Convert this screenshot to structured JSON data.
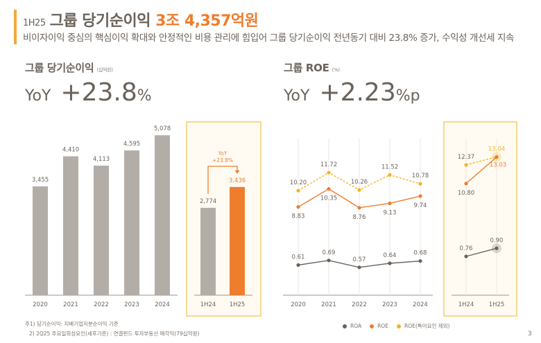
{
  "header": {
    "period": "1H25",
    "title": "그룹 당기순이익",
    "highlight": "3조 4,357억원",
    "subtitle": "비이자이익 중심의 핵심이익 확대와 안정적인 비용 관리에 힘입어 그룹 당기순이익 전년동기 대비 23.8% 증가, 수익성 개선세 지속"
  },
  "left_section": {
    "title": "그룹 당기순이익",
    "unit": "(십억원)",
    "yoy_label": "YoY",
    "yoy_value": "+23.8",
    "yoy_suffix": "%"
  },
  "right_section": {
    "title": "그룹 ROE",
    "unit": "(%)",
    "yoy_label": "YoY",
    "yoy_value": "+2.23",
    "yoy_suffix": "%p"
  },
  "colors": {
    "bar_gray": "#b3ada7",
    "bar_orange": "#ee7d2e",
    "roa": "#6b625b",
    "roe": "#ee7d2e",
    "roe_adj": "#f5b324",
    "panel_border": "#f6d98d"
  },
  "chart_data": [
    {
      "type": "bar",
      "title": "그룹 당기순이익 (십억원) - 연간",
      "categories": [
        "2020",
        "2021",
        "2022",
        "2023",
        "2024"
      ],
      "values": [
        3455,
        4410,
        4113,
        4595,
        5078
      ],
      "labels": [
        "3,455",
        "4,410",
        "4,113",
        "4,595",
        "5,078"
      ],
      "ylim": [
        0,
        5500
      ]
    },
    {
      "type": "bar",
      "title": "그룹 당기순이익 (십억원) - 반기",
      "categories": [
        "1H24",
        "1H25"
      ],
      "values": [
        2774,
        3436
      ],
      "labels": [
        "2,774",
        "3,436"
      ],
      "annotation": {
        "line1": "YoY",
        "line2": "+23.8%"
      },
      "ylim": [
        0,
        5500
      ]
    },
    {
      "type": "line",
      "title": "그룹 ROE (%) - 연간",
      "categories": [
        "2020",
        "2021",
        "2022",
        "2023",
        "2024"
      ],
      "series": [
        {
          "name": "ROE(특이요인 제외)",
          "values": [
            10.2,
            11.72,
            10.26,
            11.52,
            10.78
          ],
          "labels": [
            "10.20",
            "11.72",
            "10.26",
            "11.52",
            "10.78"
          ],
          "dashed": true
        },
        {
          "name": "ROE",
          "values": [
            8.83,
            10.35,
            8.76,
            9.13,
            9.74
          ],
          "labels": [
            "8.83",
            "10.35",
            "8.76",
            "9.13",
            "9.74"
          ]
        },
        {
          "name": "ROA",
          "values": [
            0.61,
            0.69,
            0.57,
            0.64,
            0.68
          ],
          "labels": [
            "0.61",
            "0.69",
            "0.57",
            "0.64",
            "0.68"
          ]
        }
      ]
    },
    {
      "type": "line",
      "title": "그룹 ROE (%) - 반기",
      "categories": [
        "1H24",
        "1H25"
      ],
      "series": [
        {
          "name": "ROE(특이요인 제외)",
          "values": [
            12.37,
            13.04
          ],
          "labels": [
            "12.37",
            "13.04"
          ],
          "dashed": true
        },
        {
          "name": "ROE",
          "values": [
            10.8,
            13.03
          ],
          "labels": [
            "10.80",
            "13.03"
          ]
        },
        {
          "name": "ROA",
          "values": [
            0.76,
            0.9
          ],
          "labels": [
            "0.76",
            "0.90"
          ]
        }
      ]
    }
  ],
  "legend": [
    {
      "name": "ROA"
    },
    {
      "name": "ROE"
    },
    {
      "name": "ROE(특이요인 제외)"
    }
  ],
  "footnotes": [
    "주1) 당기순이익: 지배기업지분순이익 기준",
    "2) 2Q25 주요일회성요인(세후기준) : 연결펀드 투자부동산 매각익(79십억원)"
  ],
  "page_number": "3"
}
